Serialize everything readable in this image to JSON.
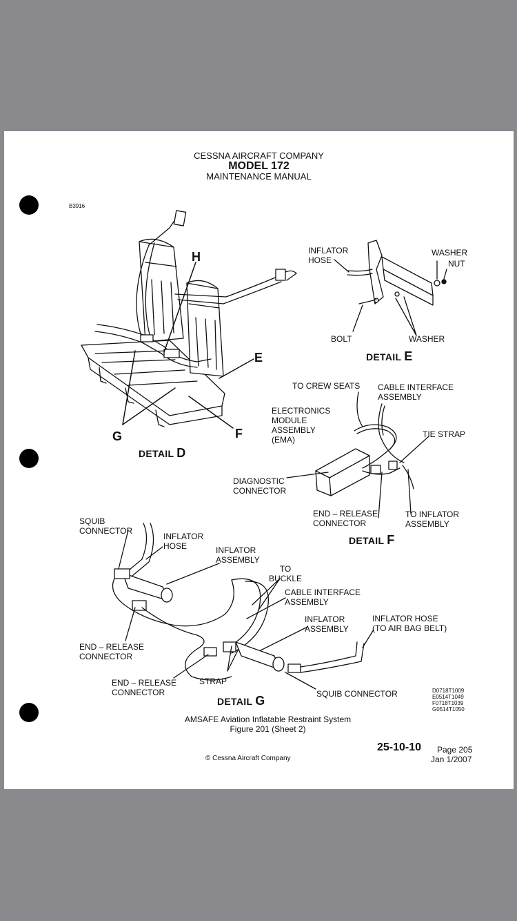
{
  "header": {
    "company": "CESSNA AIRCRAFT COMPANY",
    "model": "MODEL 172",
    "manual": "MAINTENANCE MANUAL"
  },
  "drawing_id": "B3916",
  "detail_d": {
    "title": "DETAIL",
    "letter": "D",
    "callouts": {
      "h": "H",
      "e": "E",
      "f": "F",
      "g": "G"
    }
  },
  "detail_e": {
    "title": "DETAIL",
    "letter": "E",
    "labels": {
      "inflator_hose": [
        "INFLATOR",
        "HOSE"
      ],
      "washer_top": "WASHER",
      "nut": "NUT",
      "bolt": "BOLT",
      "washer_bottom": "WASHER"
    }
  },
  "detail_f": {
    "title": "DETAIL",
    "letter": "F",
    "labels": {
      "to_crew_seats": "TO CREW SEATS",
      "cable_interface": [
        "CABLE INTERFACE",
        "ASSEMBLY"
      ],
      "ema": [
        "ELECTRONICS",
        "MODULE",
        "ASSEMBLY",
        "(EMA)"
      ],
      "tie_strap": "TIE STRAP",
      "diagnostic": [
        "DIAGNOSTIC",
        "CONNECTOR"
      ],
      "end_release": [
        "END – RELEASE",
        "CONNECTOR"
      ],
      "to_inflator": [
        "TO INFLATOR",
        "ASSEMBLY"
      ]
    }
  },
  "detail_g": {
    "title": "DETAIL",
    "letter": "G",
    "labels": {
      "squib_top": [
        "SQUIB",
        "CONNECTOR"
      ],
      "inflator_hose": [
        "INFLATOR",
        "HOSE"
      ],
      "inflator_assembly_top": [
        "INFLATOR",
        "ASSEMBLY"
      ],
      "to_buckle": [
        "TO",
        "BUCKLE"
      ],
      "cable_interface": [
        "CABLE INTERFACE",
        "ASSEMBLY"
      ],
      "inflator_assembly_mid": [
        "INFLATOR",
        "ASSEMBLY"
      ],
      "inflator_hose_airbag": [
        "INFLATOR HOSE",
        "(TO AIR BAG BELT)"
      ],
      "end_release_left": [
        "END – RELEASE",
        "CONNECTOR"
      ],
      "end_release_bottom": [
        "END – RELEASE",
        "CONNECTOR"
      ],
      "strap": "STRAP",
      "squib_bottom": "SQUIB CONNECTOR"
    }
  },
  "ref_codes": [
    "D0718T1009",
    "E0514T1049",
    "F0718T1039",
    "G0514T1050"
  ],
  "caption": {
    "line1": "AMSAFE Aviation Inflatable Restraint System",
    "line2": "Figure 201 (Sheet 2)"
  },
  "footer": {
    "section": "25-10-10",
    "page": "Page 205",
    "date": "Jan 1/2007",
    "copyright": "© Cessna Aircraft Company"
  }
}
